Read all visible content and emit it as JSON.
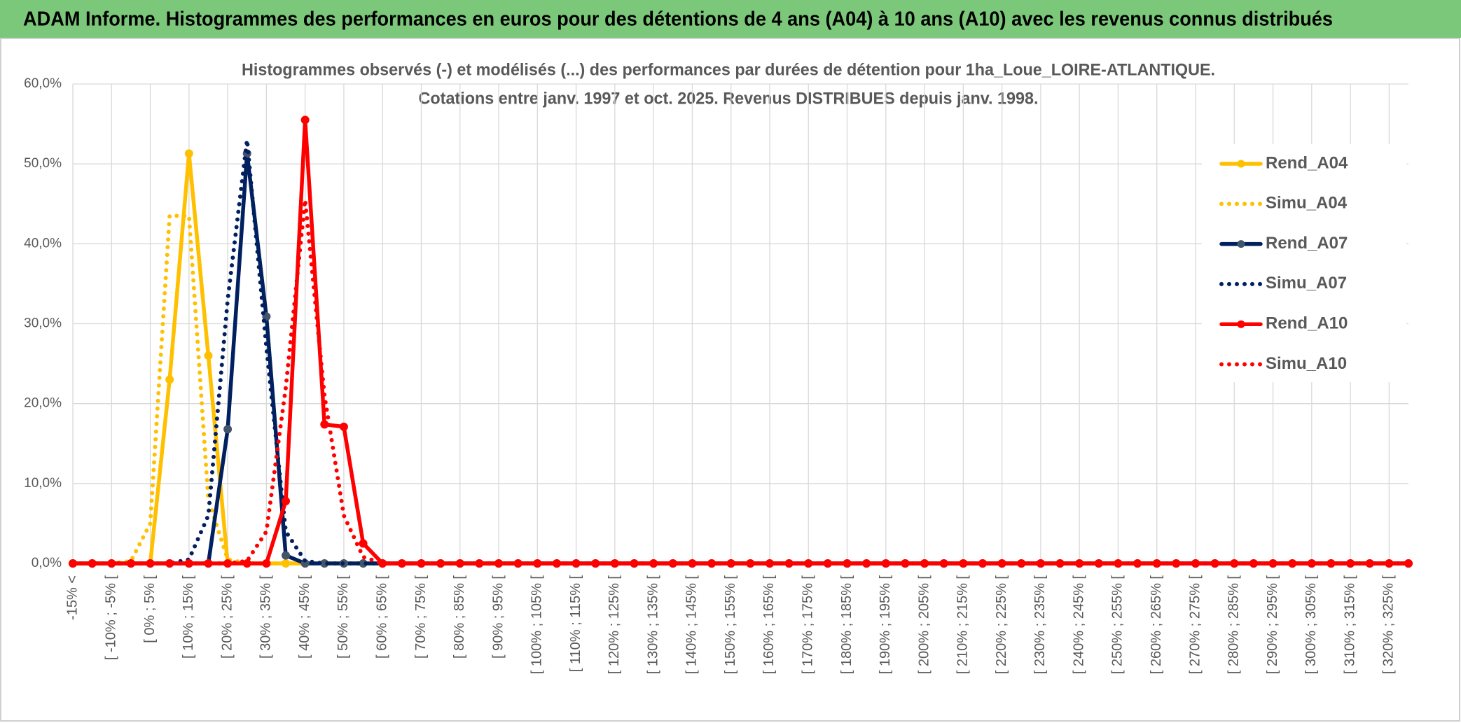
{
  "chart_data": {
    "type": "line",
    "title": "ADAM Informe. Histogrammes des performances en euros pour des détentions de 4 ans (A04) à 10 ans (A10) avec les revenus connus distribués",
    "subtitle": [
      "Histogrammes observés (-) et modélisés (...) des performances par durées de détention pour 1ha_Loue_LOIRE-ATLANTIQUE.",
      "Cotations entre janv. 1997 et oct. 2025. Revenus DISTRIBUES depuis janv. 1998."
    ],
    "categories": [
      "-15% <",
      null,
      "[ -10% ; -5% [",
      null,
      "[ 0% ; 5% [",
      null,
      "[ 10% ; 15% [",
      null,
      "[ 20% ; 25% [",
      null,
      "[ 30% ; 35% [",
      null,
      "[ 40% ; 45% [",
      null,
      "[ 50% ; 55% [",
      null,
      "[ 60% ; 65% [",
      null,
      "[ 70% ; 75% [",
      null,
      "[ 80% ; 85% [",
      null,
      "[ 90% ; 95% [",
      null,
      "[ 100% ; 105% [",
      null,
      "[ 110% ; 115% [",
      null,
      "[ 120% ; 125% [",
      null,
      "[ 130% ; 135% [",
      null,
      "[ 140% ; 145% [",
      null,
      "[ 150% ; 155% [",
      null,
      "[ 160% ; 165% [",
      null,
      "[ 170% ; 175% [",
      null,
      "[ 180% ; 185% [",
      null,
      "[ 190% ; 195% [",
      null,
      "[ 200% ; 205% [",
      null,
      "[ 210% ; 215% [",
      null,
      "[ 220% ; 225% [",
      null,
      "[ 230% ; 235% [",
      null,
      "[ 240% ; 245% [",
      null,
      "[ 250% ; 255% [",
      null,
      "[ 260% ; 265% [",
      null,
      "[ 270% ; 275% [",
      null,
      "[ 280% ; 285% [",
      null,
      "[ 290% ; 295% [",
      null,
      "[ 300% ; 305% [",
      null,
      "[ 310% ; 315% [",
      null,
      "[ 320% ; 325% [",
      null
    ],
    "series": [
      {
        "name": "Rend_A04",
        "color": "#FFC000",
        "dash": "solid",
        "markers": true,
        "values": [
          0,
          0,
          0,
          0,
          0,
          23,
          51.3,
          26,
          0,
          0,
          0,
          0,
          0,
          0,
          0,
          0,
          0,
          0,
          0,
          0,
          0,
          0,
          0,
          0,
          0,
          0,
          0,
          0,
          0,
          0,
          0,
          0,
          0,
          0,
          0,
          0,
          0,
          0,
          0,
          0,
          0,
          0,
          0,
          0,
          0,
          0,
          0,
          0,
          0,
          0,
          0,
          0,
          0,
          0,
          0,
          0,
          0,
          0,
          0,
          0,
          0,
          0,
          0,
          0,
          0,
          0,
          0,
          0,
          0,
          0
        ]
      },
      {
        "name": "Simu_A04",
        "color": "#FFC000",
        "dash": "dotted",
        "markers": false,
        "values": [
          0,
          0,
          0,
          0.3,
          5,
          43.5,
          43.5,
          8,
          0.5,
          0,
          0,
          0,
          0,
          0,
          0,
          0,
          0,
          0,
          0,
          0,
          0,
          0,
          0,
          0,
          0,
          0,
          0,
          0,
          0,
          0,
          0,
          0,
          0,
          0,
          0,
          0,
          0,
          0,
          0,
          0,
          0,
          0,
          0,
          0,
          0,
          0,
          0,
          0,
          0,
          0,
          0,
          0,
          0,
          0,
          0,
          0,
          0,
          0,
          0,
          0,
          0,
          0,
          0,
          0,
          0,
          0,
          0,
          0,
          0,
          0
        ]
      },
      {
        "name": "Rend_A07",
        "color": "#002060",
        "marker_color": "#44546A",
        "dash": "solid",
        "markers": true,
        "values": [
          0,
          0,
          0,
          0,
          0,
          0,
          0,
          0,
          16.8,
          51.3,
          30.9,
          1,
          0,
          0,
          0,
          0,
          0,
          0,
          0,
          0,
          0,
          0,
          0,
          0,
          0,
          0,
          0,
          0,
          0,
          0,
          0,
          0,
          0,
          0,
          0,
          0,
          0,
          0,
          0,
          0,
          0,
          0,
          0,
          0,
          0,
          0,
          0,
          0,
          0,
          0,
          0,
          0,
          0,
          0,
          0,
          0,
          0,
          0,
          0,
          0,
          0,
          0,
          0,
          0,
          0,
          0,
          0,
          0,
          0,
          0
        ]
      },
      {
        "name": "Simu_A07",
        "color": "#002060",
        "dash": "dotted",
        "markers": false,
        "values": [
          0,
          0,
          0,
          0,
          0,
          0,
          0.5,
          6,
          33,
          53,
          27,
          4,
          0.3,
          0,
          0,
          0,
          0,
          0,
          0,
          0,
          0,
          0,
          0,
          0,
          0,
          0,
          0,
          0,
          0,
          0,
          0,
          0,
          0,
          0,
          0,
          0,
          0,
          0,
          0,
          0,
          0,
          0,
          0,
          0,
          0,
          0,
          0,
          0,
          0,
          0,
          0,
          0,
          0,
          0,
          0,
          0,
          0,
          0,
          0,
          0,
          0,
          0,
          0,
          0,
          0,
          0,
          0,
          0,
          0,
          0
        ]
      },
      {
        "name": "Rend_A10",
        "color": "#FF0000",
        "dash": "solid",
        "markers": true,
        "values": [
          0,
          0,
          0,
          0,
          0,
          0,
          0,
          0,
          0,
          0,
          0,
          7.8,
          55.5,
          17.4,
          17.1,
          2.5,
          0,
          0,
          0,
          0,
          0,
          0,
          0,
          0,
          0,
          0,
          0,
          0,
          0,
          0,
          0,
          0,
          0,
          0,
          0,
          0,
          0,
          0,
          0,
          0,
          0,
          0,
          0,
          0,
          0,
          0,
          0,
          0,
          0,
          0,
          0,
          0,
          0,
          0,
          0,
          0,
          0,
          0,
          0,
          0,
          0,
          0,
          0,
          0,
          0,
          0,
          0,
          0,
          0,
          0
        ]
      },
      {
        "name": "Simu_A10",
        "color": "#FF0000",
        "dash": "dotted",
        "markers": false,
        "values": [
          0,
          0,
          0,
          0,
          0,
          0,
          0,
          0,
          0,
          0.3,
          4,
          22,
          45.5,
          21,
          6,
          0.8,
          0,
          0,
          0,
          0,
          0,
          0,
          0,
          0,
          0,
          0,
          0,
          0,
          0,
          0,
          0,
          0,
          0,
          0,
          0,
          0,
          0,
          0,
          0,
          0,
          0,
          0,
          0,
          0,
          0,
          0,
          0,
          0,
          0,
          0,
          0,
          0,
          0,
          0,
          0,
          0,
          0,
          0,
          0,
          0,
          0,
          0,
          0,
          0,
          0,
          0,
          0,
          0,
          0,
          0
        ]
      }
    ],
    "ylim": [
      0,
      60
    ],
    "yticks": [
      {
        "value": 0,
        "label": "0,0%"
      },
      {
        "value": 10,
        "label": "10,0%"
      },
      {
        "value": 20,
        "label": "20,0%"
      },
      {
        "value": 30,
        "label": "30,0%"
      },
      {
        "value": 40,
        "label": "40,0%"
      },
      {
        "value": 50,
        "label": "50,0%"
      },
      {
        "value": 60,
        "label": "60,0%"
      }
    ],
    "grid": true,
    "legend": "right"
  }
}
